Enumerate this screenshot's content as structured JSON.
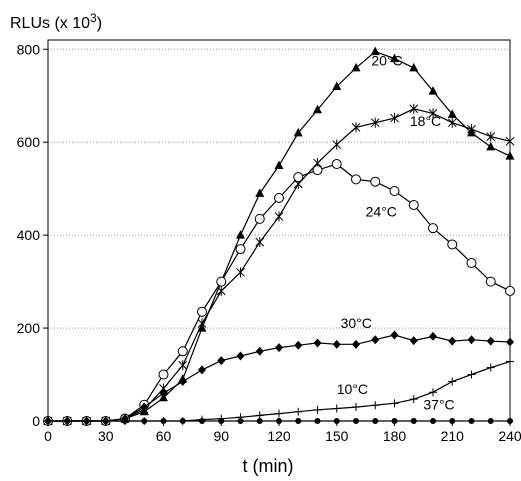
{
  "chart_data": {
    "type": "line",
    "title": "",
    "ylabel_main": "RLUs (x 10",
    "ylabel_exp": "3",
    "ylabel_close": ")",
    "xlabel": "t (min)",
    "xlim": [
      0,
      240
    ],
    "ylim": [
      0,
      820
    ],
    "xticks": [
      0,
      30,
      60,
      90,
      120,
      150,
      180,
      210,
      240
    ],
    "yticks": [
      0,
      200,
      400,
      600,
      800
    ],
    "grid": "horizontal dotted",
    "series": [
      {
        "name": "20°C",
        "marker": "triangle",
        "x": [
          0,
          10,
          20,
          30,
          40,
          50,
          60,
          70,
          80,
          90,
          100,
          110,
          120,
          130,
          140,
          150,
          160,
          170,
          180,
          190,
          200,
          210,
          220,
          230,
          240
        ],
        "y": [
          0,
          0,
          0,
          0,
          5,
          20,
          50,
          90,
          200,
          300,
          400,
          490,
          550,
          620,
          670,
          720,
          760,
          795,
          780,
          760,
          710,
          660,
          620,
          590,
          570
        ]
      },
      {
        "name": "18°C",
        "marker": "star",
        "x": [
          0,
          10,
          20,
          30,
          40,
          50,
          60,
          70,
          80,
          90,
          100,
          110,
          120,
          130,
          140,
          150,
          160,
          170,
          180,
          190,
          200,
          210,
          220,
          230,
          240
        ],
        "y": [
          0,
          0,
          0,
          0,
          5,
          25,
          70,
          120,
          210,
          280,
          320,
          385,
          440,
          510,
          555,
          595,
          632,
          642,
          652,
          672,
          662,
          642,
          628,
          612,
          602
        ]
      },
      {
        "name": "24°C",
        "marker": "open-circle",
        "x": [
          0,
          10,
          20,
          30,
          40,
          50,
          60,
          70,
          80,
          90,
          100,
          110,
          120,
          130,
          140,
          150,
          160,
          170,
          180,
          190,
          200,
          210,
          220,
          230,
          240
        ],
        "y": [
          0,
          0,
          0,
          0,
          5,
          35,
          100,
          150,
          235,
          300,
          370,
          435,
          480,
          525,
          540,
          553,
          520,
          515,
          495,
          465,
          415,
          380,
          340,
          300,
          280
        ]
      },
      {
        "name": "30°C",
        "marker": "filled-diamond",
        "x": [
          0,
          10,
          20,
          30,
          40,
          50,
          60,
          70,
          80,
          90,
          100,
          110,
          120,
          130,
          140,
          150,
          160,
          170,
          180,
          190,
          200,
          210,
          220,
          230,
          240
        ],
        "y": [
          0,
          0,
          0,
          0,
          5,
          30,
          60,
          85,
          110,
          130,
          140,
          150,
          158,
          163,
          168,
          165,
          165,
          175,
          185,
          173,
          182,
          172,
          175,
          172,
          170
        ]
      },
      {
        "name": "10°C",
        "marker": "plus",
        "x": [
          0,
          10,
          20,
          30,
          40,
          50,
          60,
          70,
          80,
          90,
          100,
          110,
          120,
          130,
          140,
          150,
          160,
          170,
          180,
          190,
          200,
          210,
          220,
          230,
          240
        ],
        "y": [
          0,
          0,
          0,
          0,
          0,
          0,
          0,
          0,
          3,
          5,
          8,
          12,
          16,
          20,
          24,
          27,
          30,
          34,
          38,
          47,
          62,
          85,
          100,
          115,
          128
        ]
      },
      {
        "name": "37°C",
        "marker": "small-dot",
        "x": [
          0,
          10,
          20,
          30,
          40,
          50,
          60,
          70,
          80,
          90,
          100,
          110,
          120,
          130,
          140,
          150,
          160,
          170,
          180,
          190,
          200,
          210,
          220,
          230,
          240
        ],
        "y": [
          0,
          0,
          0,
          0,
          0,
          0,
          0,
          0,
          0,
          0,
          0,
          0,
          0,
          0,
          0,
          0,
          0,
          0,
          0,
          0,
          0,
          0,
          0,
          0,
          0
        ]
      }
    ],
    "annotations": [
      {
        "text": "20°C",
        "x": 168,
        "y": 765
      },
      {
        "text": "18°C",
        "x": 188,
        "y": 635
      },
      {
        "text": "24°C",
        "x": 165,
        "y": 440
      },
      {
        "text": "30°C",
        "x": 152,
        "y": 200
      },
      {
        "text": "10°C",
        "x": 150,
        "y": 58
      },
      {
        "text": "37°C",
        "x": 195,
        "y": 25
      }
    ]
  }
}
